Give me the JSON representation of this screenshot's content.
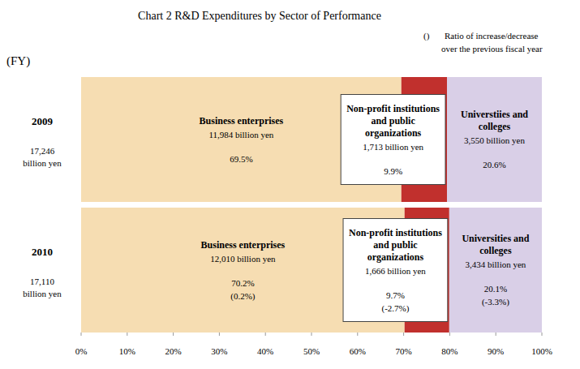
{
  "chart_data": {
    "type": "bar",
    "orientation": "horizontal",
    "stacked": true,
    "data_labels": true,
    "title": "Chart 2  R&D Expenditures by Sector of Performance",
    "note_symbol": "()",
    "note_lines": [
      "Ratio of increase/decrease",
      "over the previous fiscal year"
    ],
    "y_label": "(FY)",
    "categories": [
      "2009",
      "2010"
    ],
    "total_labels": [
      "17,246 billion yen",
      "17,110 billion yen"
    ],
    "xlim": [
      0,
      100
    ],
    "xticks": [
      {
        "value": 0,
        "label": "0%"
      },
      {
        "value": 10,
        "label": "10%"
      },
      {
        "value": 20,
        "label": "20%"
      },
      {
        "value": 30,
        "label": "30%"
      },
      {
        "value": 40,
        "label": "40%"
      },
      {
        "value": 50,
        "label": "50%"
      },
      {
        "value": 60,
        "label": "60%"
      },
      {
        "value": 70,
        "label": "70%"
      },
      {
        "value": 80,
        "label": "80%"
      },
      {
        "value": 90,
        "label": "90%"
      },
      {
        "value": 100,
        "label": "100%"
      }
    ],
    "series": [
      {
        "color": "#f6ddb2",
        "labels": [
          "Business enterprises",
          "Business enterprises"
        ],
        "values": [
          69.5,
          70.2
        ],
        "value_labels": [
          "69.5%",
          "70.2%"
        ],
        "amount_labels": [
          "11,984 billion yen",
          "12,010 billion yen"
        ],
        "change_labels": [
          null,
          "(0.2%)"
        ]
      },
      {
        "color": "#c1302d",
        "labels": [
          "Non-profit institutions and public organizations",
          "Non-profit institutions and public organizations"
        ],
        "values": [
          9.9,
          9.7
        ],
        "value_labels": [
          "9.9%",
          "9.7%"
        ],
        "amount_labels": [
          "1,713 billion yen",
          "1,666 billion yen"
        ],
        "change_labels": [
          null,
          "(-2.7%)"
        ]
      },
      {
        "color": "#d9cfe7",
        "labels": [
          "Universtiies and colleges",
          "Universities and colleges"
        ],
        "values": [
          20.6,
          20.1
        ],
        "value_labels": [
          "20.6%",
          "20.1%"
        ],
        "amount_labels": [
          "3,550 billion yen",
          "3,434 billion yen"
        ],
        "change_labels": [
          null,
          "(-3.3%)"
        ]
      }
    ]
  }
}
